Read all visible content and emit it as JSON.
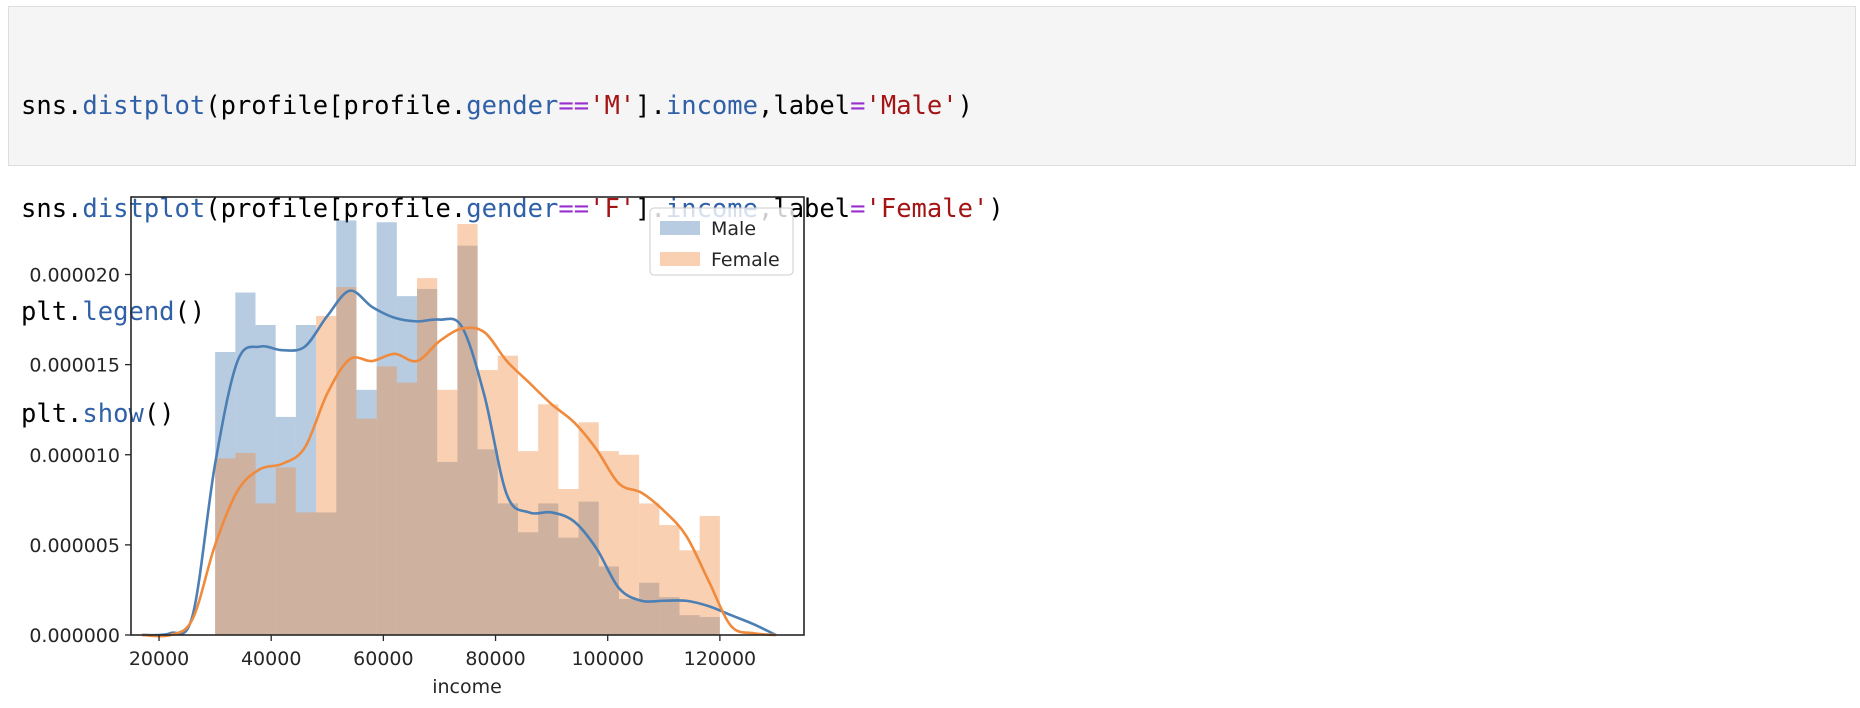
{
  "code_cell": {
    "lines": [
      [
        {
          "t": "sns.",
          "c": "plain"
        },
        {
          "t": "distplot",
          "c": "fn"
        },
        {
          "t": "(profile[profile.",
          "c": "plain"
        },
        {
          "t": "gender",
          "c": "fn"
        },
        {
          "t": "==",
          "c": "op"
        },
        {
          "t": "'M'",
          "c": "str"
        },
        {
          "t": "].",
          "c": "plain"
        },
        {
          "t": "income",
          "c": "fn"
        },
        {
          "t": ",label",
          "c": "plain"
        },
        {
          "t": "=",
          "c": "op"
        },
        {
          "t": "'Male'",
          "c": "str"
        },
        {
          "t": ")",
          "c": "plain"
        }
      ],
      [
        {
          "t": "sns.",
          "c": "plain"
        },
        {
          "t": "distplot",
          "c": "fn"
        },
        {
          "t": "(profile[profile.",
          "c": "plain"
        },
        {
          "t": "gender",
          "c": "fn"
        },
        {
          "t": "==",
          "c": "op"
        },
        {
          "t": "'F'",
          "c": "str"
        },
        {
          "t": "].",
          "c": "plain"
        },
        {
          "t": "income",
          "c": "fn"
        },
        {
          "t": ",label",
          "c": "plain"
        },
        {
          "t": "=",
          "c": "op"
        },
        {
          "t": "'Female'",
          "c": "str"
        },
        {
          "t": ")",
          "c": "plain"
        }
      ],
      [
        {
          "t": "plt.",
          "c": "plain"
        },
        {
          "t": "legend",
          "c": "fn"
        },
        {
          "t": "()",
          "c": "plain"
        }
      ],
      [
        {
          "t": "plt.",
          "c": "plain"
        },
        {
          "t": "show",
          "c": "fn"
        },
        {
          "t": "()",
          "c": "plain"
        }
      ]
    ]
  },
  "chart_data": {
    "type": "bar",
    "xlabel": "income",
    "ylabel": "",
    "xlim": [
      15000,
      135000
    ],
    "ylim": [
      0,
      2.43e-05
    ],
    "xticks": [
      20000,
      40000,
      60000,
      80000,
      100000,
      120000
    ],
    "xtick_labels": [
      "20000",
      "40000",
      "60000",
      "80000",
      "100000",
      "120000"
    ],
    "yticks": [
      0,
      5e-06,
      1e-05,
      1.5e-05,
      2e-05
    ],
    "ytick_labels": [
      "0.000000",
      "0.000005",
      "0.000010",
      "0.000015",
      "0.000020"
    ],
    "grid": false,
    "legend_position": "upper right",
    "bin_edges": [
      30000,
      33600,
      37200,
      40800,
      44400,
      48000,
      51600,
      55200,
      58800,
      62400,
      66000,
      69600,
      73200,
      76800,
      80400,
      84000,
      87600,
      91200,
      94800,
      98400,
      102000,
      105600,
      109200,
      112800,
      116400,
      120000
    ],
    "series": [
      {
        "name": "Male",
        "color": "#4c7fb4",
        "histogram_density": [
          1.57e-05,
          1.9e-05,
          1.72e-05,
          1.21e-05,
          1.72e-05,
          6.8e-06,
          2.3e-05,
          1.36e-05,
          2.29e-05,
          1.88e-05,
          1.92e-05,
          9.6e-06,
          2.16e-05,
          1.03e-05,
          7.3e-06,
          5.7e-06,
          7.3e-06,
          5.4e-06,
          7.4e-06,
          3.8e-06,
          2e-06,
          2.9e-06,
          2.1e-06,
          1.1e-06,
          1e-06
        ],
        "kde_x": [
          17000,
          22000,
          26000,
          30000,
          34000,
          38000,
          42000,
          46000,
          50000,
          54000,
          58000,
          62000,
          66000,
          70000,
          74000,
          78000,
          82000,
          86000,
          90000,
          94000,
          98000,
          102000,
          106000,
          110000,
          114000,
          118000,
          122000,
          126000,
          130000
        ],
        "kde_y": [
          0,
          1e-07,
          1.1e-06,
          9.5e-06,
          1.52e-05,
          1.6e-05,
          1.58e-05,
          1.6e-05,
          1.77e-05,
          1.91e-05,
          1.82e-05,
          1.76e-05,
          1.74e-05,
          1.75e-05,
          1.71e-05,
          1.33e-05,
          7.8e-06,
          6.8e-06,
          6.8e-06,
          6.3e-06,
          4.8e-06,
          2.6e-06,
          1.9e-06,
          1.9e-06,
          1.9e-06,
          1.6e-06,
          1.1e-06,
          6e-07,
          0
        ]
      },
      {
        "name": "Female",
        "color": "#f08a3c",
        "histogram_density": [
          9.8e-06,
          1.01e-05,
          7.3e-06,
          9.3e-06,
          6.8e-06,
          1.77e-05,
          1.93e-05,
          1.2e-05,
          1.49e-05,
          1.4e-05,
          1.98e-05,
          1.36e-05,
          2.28e-05,
          1.47e-05,
          1.55e-05,
          1.02e-05,
          1.28e-05,
          8.1e-06,
          1.18e-05,
          1.02e-05,
          1e-05,
          7.3e-06,
          6.1e-06,
          4.7e-06,
          6.6e-06
        ],
        "kde_x": [
          17000,
          22000,
          26000,
          30000,
          34000,
          38000,
          42000,
          46000,
          50000,
          54000,
          58000,
          62000,
          66000,
          70000,
          74000,
          78000,
          82000,
          86000,
          90000,
          94000,
          98000,
          102000,
          106000,
          110000,
          114000,
          118000,
          122000,
          126000,
          130000
        ],
        "kde_y": [
          0,
          0,
          9e-07,
          5e-06,
          8e-06,
          9.2e-06,
          9.5e-06,
          1.04e-05,
          1.34e-05,
          1.53e-05,
          1.52e-05,
          1.56e-05,
          1.52e-05,
          1.63e-05,
          1.7e-05,
          1.68e-05,
          1.52e-05,
          1.4e-05,
          1.28e-05,
          1.18e-05,
          1.03e-05,
          8.4e-06,
          7.9e-06,
          6.9e-06,
          5.5e-06,
          3e-06,
          5e-07,
          1e-07,
          0
        ]
      }
    ]
  }
}
